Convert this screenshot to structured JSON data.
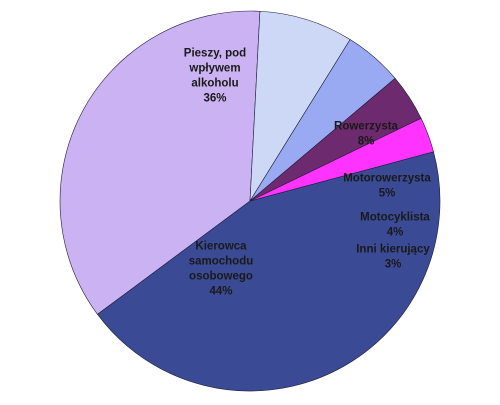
{
  "chart_data": {
    "type": "pie",
    "title": "",
    "slices": [
      {
        "name": "Kierowca samochodu osobowego",
        "value": 44,
        "percent_label": "44%",
        "label_lines": [
          "Kierowca",
          "samochodu",
          "osobowego"
        ],
        "color": "#3a4a94"
      },
      {
        "name": "Pieszy, pod wpływem alkoholu",
        "value": 36,
        "percent_label": "36%",
        "label_lines": [
          "Pieszy, pod",
          "wpływem",
          "alkoholu"
        ],
        "color": "#cbb2f2"
      },
      {
        "name": "Rowerzysta",
        "value": 8,
        "percent_label": "8%",
        "label_lines": [
          "Rowerzysta"
        ],
        "color": "#cdd7f6"
      },
      {
        "name": "Motorowerzysta",
        "value": 5,
        "percent_label": "5%",
        "label_lines": [
          "Motorowerzysta"
        ],
        "color": "#9aaaf2"
      },
      {
        "name": "Motocyklista",
        "value": 4,
        "percent_label": "4%",
        "label_lines": [
          "Motocyklista"
        ],
        "color": "#6e2a6e"
      },
      {
        "name": "Inni kierujący",
        "value": 3,
        "percent_label": "3%",
        "label_lines": [
          "Inni kierujący"
        ],
        "color": "#ff33ff"
      }
    ],
    "label_color": "#1a1a1a",
    "legend": "none"
  }
}
